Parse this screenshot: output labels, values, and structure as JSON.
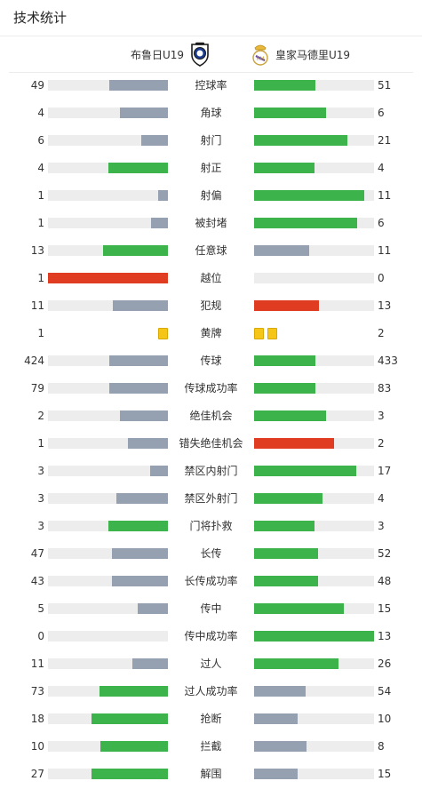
{
  "header": {
    "title": "技术统计"
  },
  "teams": {
    "home": {
      "name": "布鲁日U19",
      "crest_icon": "club-brugge-crest-icon"
    },
    "away": {
      "name": "皇家马德里U19",
      "crest_icon": "real-madrid-crest-icon"
    }
  },
  "colors": {
    "win": "#3cb44b",
    "lose": "#95a0b0",
    "alert": "#e03c22",
    "track": "#ededed",
    "yellow_card": "#f5c518"
  },
  "stats": [
    {
      "label": "控球率",
      "home": "49",
      "away": "51",
      "home_pct": 0.49,
      "away_pct": 0.51,
      "home_color": "lose",
      "away_color": "win"
    },
    {
      "label": "角球",
      "home": "4",
      "away": "6",
      "home_pct": 0.4,
      "away_pct": 0.6,
      "home_color": "lose",
      "away_color": "win"
    },
    {
      "label": "射门",
      "home": "6",
      "away": "21",
      "home_pct": 0.22,
      "away_pct": 0.78,
      "home_color": "lose",
      "away_color": "win"
    },
    {
      "label": "射正",
      "home": "4",
      "away": "4",
      "home_pct": 0.5,
      "away_pct": 0.5,
      "home_color": "win",
      "away_color": "win"
    },
    {
      "label": "射偏",
      "home": "1",
      "away": "11",
      "home_pct": 0.08,
      "away_pct": 0.92,
      "home_color": "lose",
      "away_color": "win"
    },
    {
      "label": "被封堵",
      "home": "1",
      "away": "6",
      "home_pct": 0.14,
      "away_pct": 0.86,
      "home_color": "lose",
      "away_color": "win"
    },
    {
      "label": "任意球",
      "home": "13",
      "away": "11",
      "home_pct": 0.54,
      "away_pct": 0.46,
      "home_color": "win",
      "away_color": "lose"
    },
    {
      "label": "越位",
      "home": "1",
      "away": "0",
      "home_pct": 1.0,
      "away_pct": 0.0,
      "home_color": "alert",
      "away_color": "lose"
    },
    {
      "label": "犯规",
      "home": "11",
      "away": "13",
      "home_pct": 0.46,
      "away_pct": 0.54,
      "home_color": "lose",
      "away_color": "alert"
    },
    {
      "label": "黄牌",
      "home": "1",
      "away": "2",
      "cards": true
    },
    {
      "label": "传球",
      "home": "424",
      "away": "433",
      "home_pct": 0.49,
      "away_pct": 0.51,
      "home_color": "lose",
      "away_color": "win"
    },
    {
      "label": "传球成功率",
      "home": "79",
      "away": "83",
      "home_pct": 0.49,
      "away_pct": 0.51,
      "home_color": "lose",
      "away_color": "win"
    },
    {
      "label": "绝佳机会",
      "home": "2",
      "away": "3",
      "home_pct": 0.4,
      "away_pct": 0.6,
      "home_color": "lose",
      "away_color": "win"
    },
    {
      "label": "错失绝佳机会",
      "home": "1",
      "away": "2",
      "home_pct": 0.33,
      "away_pct": 0.67,
      "home_color": "lose",
      "away_color": "alert"
    },
    {
      "label": "禁区内射门",
      "home": "3",
      "away": "17",
      "home_pct": 0.15,
      "away_pct": 0.85,
      "home_color": "lose",
      "away_color": "win"
    },
    {
      "label": "禁区外射门",
      "home": "3",
      "away": "4",
      "home_pct": 0.43,
      "away_pct": 0.57,
      "home_color": "lose",
      "away_color": "win"
    },
    {
      "label": "门将扑救",
      "home": "3",
      "away": "3",
      "home_pct": 0.5,
      "away_pct": 0.5,
      "home_color": "win",
      "away_color": "win"
    },
    {
      "label": "长传",
      "home": "47",
      "away": "52",
      "home_pct": 0.47,
      "away_pct": 0.53,
      "home_color": "lose",
      "away_color": "win"
    },
    {
      "label": "长传成功率",
      "home": "43",
      "away": "48",
      "home_pct": 0.47,
      "away_pct": 0.53,
      "home_color": "lose",
      "away_color": "win"
    },
    {
      "label": "传中",
      "home": "5",
      "away": "15",
      "home_pct": 0.25,
      "away_pct": 0.75,
      "home_color": "lose",
      "away_color": "win"
    },
    {
      "label": "传中成功率",
      "home": "0",
      "away": "13",
      "home_pct": 0.0,
      "away_pct": 1.0,
      "home_color": "lose",
      "away_color": "win"
    },
    {
      "label": "过人",
      "home": "11",
      "away": "26",
      "home_pct": 0.3,
      "away_pct": 0.7,
      "home_color": "lose",
      "away_color": "win"
    },
    {
      "label": "过人成功率",
      "home": "73",
      "away": "54",
      "home_pct": 0.57,
      "away_pct": 0.43,
      "home_color": "win",
      "away_color": "lose"
    },
    {
      "label": "抢断",
      "home": "18",
      "away": "10",
      "home_pct": 0.64,
      "away_pct": 0.36,
      "home_color": "win",
      "away_color": "lose"
    },
    {
      "label": "拦截",
      "home": "10",
      "away": "8",
      "home_pct": 0.56,
      "away_pct": 0.44,
      "home_color": "win",
      "away_color": "lose"
    },
    {
      "label": "解围",
      "home": "27",
      "away": "15",
      "home_pct": 0.64,
      "away_pct": 0.36,
      "home_color": "win",
      "away_color": "lose"
    }
  ]
}
